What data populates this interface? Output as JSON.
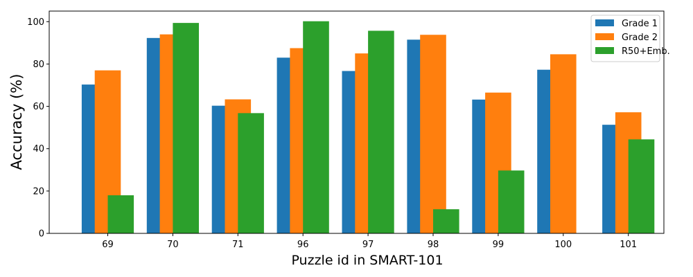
{
  "chart_data": {
    "type": "bar",
    "xlabel": "Puzzle id in SMART-101",
    "ylabel": "Accuracy (%)",
    "categories": [
      "69",
      "70",
      "71",
      "96",
      "97",
      "98",
      "99",
      "100",
      "101"
    ],
    "ylim": [
      0,
      105
    ],
    "yticks": [
      0,
      20,
      40,
      60,
      80,
      100
    ],
    "grid": false,
    "legend_position": "top-right",
    "series": [
      {
        "name": "Grade 1",
        "color": "#1f77b4",
        "values": [
          70.3,
          92.3,
          60.3,
          83.0,
          76.7,
          91.5,
          63.2,
          77.3,
          51.3
        ]
      },
      {
        "name": "Grade 2",
        "color": "#ff7f0e",
        "values": [
          77.0,
          94.0,
          63.3,
          87.5,
          85.0,
          93.8,
          66.5,
          84.6,
          57.2
        ]
      },
      {
        "name": "R50+Emb.",
        "color": "#2ca02c",
        "values": [
          18.0,
          99.4,
          56.8,
          100.2,
          95.7,
          11.4,
          29.7,
          null,
          44.4
        ]
      }
    ]
  }
}
